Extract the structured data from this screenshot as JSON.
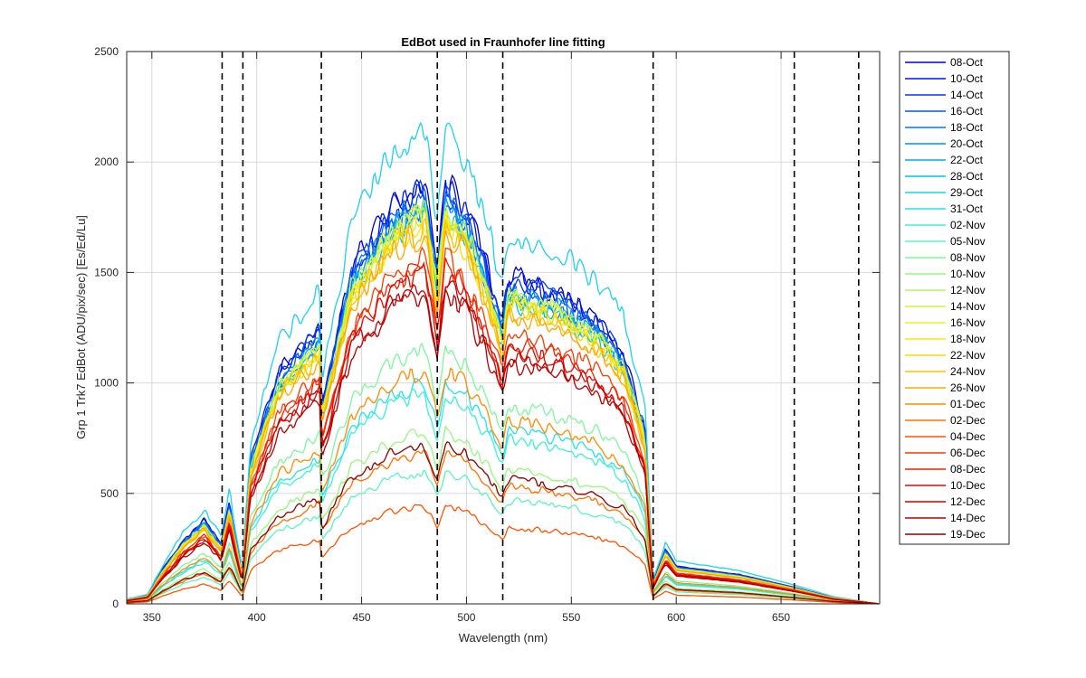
{
  "chart_data": {
    "type": "line",
    "title": "EdBot used in Fraunhofer line fitting",
    "xlabel": "Wavelength (nm)",
    "ylabel": "Grp 1 Trk7 EdBot (ADU/pix/sec) [Es/Ed/Lu]",
    "xlim": [
      338,
      697
    ],
    "ylim": [
      0,
      2500
    ],
    "xticks": [
      350,
      400,
      450,
      500,
      550,
      600,
      650
    ],
    "yticks": [
      0,
      500,
      1000,
      1500,
      2000,
      2500
    ],
    "grid": true,
    "legend_position": "outside-right",
    "fraunhofer_lines_nm": [
      383.5,
      393.4,
      430.8,
      486.1,
      517.3,
      589.0,
      656.3,
      687.0
    ],
    "envelope": {
      "x": [
        338,
        348,
        355,
        365,
        375,
        383,
        387,
        393,
        397,
        410,
        430,
        431,
        445,
        465,
        480,
        486,
        490,
        500,
        510,
        517,
        520,
        540,
        560,
        575,
        585,
        589,
        595,
        600,
        630,
        656,
        675,
        697
      ],
      "y": [
        0.01,
        0.02,
        0.08,
        0.15,
        0.2,
        0.14,
        0.24,
        0.07,
        0.34,
        0.55,
        0.66,
        0.48,
        0.8,
        0.95,
        1.0,
        0.8,
        1.0,
        0.94,
        0.8,
        0.67,
        0.78,
        0.75,
        0.69,
        0.6,
        0.42,
        0.05,
        0.13,
        0.09,
        0.07,
        0.04,
        0.015,
        0.0
      ]
    },
    "series": [
      {
        "name": "08-Oct",
        "color": "#0000d4",
        "peak": 1900
      },
      {
        "name": "10-Oct",
        "color": "#0017e8",
        "peak": 1880
      },
      {
        "name": "14-Oct",
        "color": "#0035f5",
        "peak": 1860
      },
      {
        "name": "16-Oct",
        "color": "#0055ff",
        "peak": 1840
      },
      {
        "name": "18-Oct",
        "color": "#0073ff",
        "peak": 1820
      },
      {
        "name": "20-Oct",
        "color": "#0091f5",
        "peak": 1800
      },
      {
        "name": "22-Oct",
        "color": "#00acee",
        "peak": 1780
      },
      {
        "name": "28-Oct",
        "color": "#00c3ea",
        "peak": 1760
      },
      {
        "name": "29-Oct",
        "color": "#1fd0ef",
        "peak": 2150
      },
      {
        "name": "31-Oct",
        "color": "#22e3ef",
        "peak": 1000
      },
      {
        "name": "02-Nov",
        "color": "#3ff0d6",
        "peak": 950
      },
      {
        "name": "05-Nov",
        "color": "#5cf5bd",
        "peak": 600
      },
      {
        "name": "08-Nov",
        "color": "#7ff79e",
        "peak": 1150
      },
      {
        "name": "10-Nov",
        "color": "#98f77e",
        "peak": 780
      },
      {
        "name": "12-Nov",
        "color": "#b2f65f",
        "peak": 1780
      },
      {
        "name": "14-Nov",
        "color": "#ccf540",
        "peak": 1770
      },
      {
        "name": "16-Nov",
        "color": "#e5f222",
        "peak": 1760
      },
      {
        "name": "18-Nov",
        "color": "#f9ec05",
        "peak": 1740
      },
      {
        "name": "22-Nov",
        "color": "#ffd900",
        "peak": 1720
      },
      {
        "name": "24-Nov",
        "color": "#ffc000",
        "peak": 1700
      },
      {
        "name": "26-Nov",
        "color": "#ffa500",
        "peak": 1680
      },
      {
        "name": "01-Dec",
        "color": "#ff8b00",
        "peak": 1060
      },
      {
        "name": "02-Dec",
        "color": "#ff7000",
        "peak": 680
      },
      {
        "name": "04-Dec",
        "color": "#ff5500",
        "peak": 440
      },
      {
        "name": "06-Dec",
        "color": "#ff3a00",
        "peak": 1560
      },
      {
        "name": "08-Dec",
        "color": "#f52000",
        "peak": 1520
      },
      {
        "name": "10-Dec",
        "color": "#e00a00",
        "peak": 1480
      },
      {
        "name": "12-Dec",
        "color": "#cc0000",
        "peak": 1440
      },
      {
        "name": "14-Dec",
        "color": "#b50000",
        "peak": 1400
      },
      {
        "name": "19-Dec",
        "color": "#8c0000",
        "peak": 720
      }
    ]
  }
}
